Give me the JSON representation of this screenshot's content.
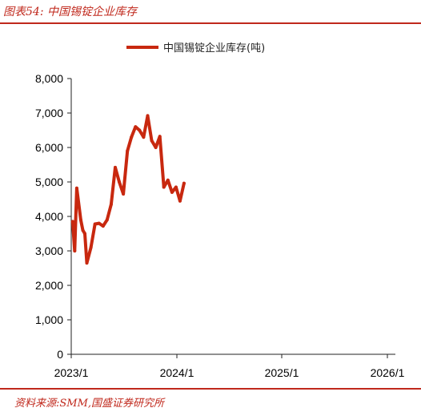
{
  "figure_title": "图表54:  中国锡锭企业库存",
  "source_note": "资料来源:SMM,国盛证券研究所",
  "colors": {
    "accent": "#c0281c",
    "series": "#c8280f",
    "axis": "#222222"
  },
  "chart_data": {
    "type": "line",
    "title": "",
    "xlabel": "",
    "ylabel": "",
    "ylim": [
      0,
      8000
    ],
    "yticks": [
      0,
      1000,
      2000,
      3000,
      4000,
      5000,
      6000,
      7000,
      8000
    ],
    "ytick_labels": [
      "0",
      "1,000",
      "2,000",
      "3,000",
      "4,000",
      "5,000",
      "6,000",
      "7,000",
      "8,000"
    ],
    "xticks": [
      "2023/1",
      "2024/1",
      "2025/1",
      "2026/1"
    ],
    "grid": false,
    "legend_position": "top-center",
    "series": [
      {
        "name": "中国锡锭企业库存(吨)",
        "color": "#c8280f",
        "x": [
          "2023-01-06",
          "2023-01-13",
          "2023-01-20",
          "2023-02-03",
          "2023-02-10",
          "2023-02-17",
          "2023-02-24",
          "2023-03-10",
          "2023-03-24",
          "2023-04-07",
          "2023-04-21",
          "2023-05-05",
          "2023-05-19",
          "2023-06-02",
          "2023-06-16",
          "2023-06-30",
          "2023-07-14",
          "2023-07-28",
          "2023-08-11",
          "2023-08-25",
          "2023-09-08",
          "2023-09-22",
          "2023-10-06",
          "2023-10-20",
          "2023-11-03",
          "2023-11-17",
          "2023-12-01",
          "2023-12-15",
          "2023-12-29",
          "2024-01-12",
          "2024-01-26"
        ],
        "values": [
          3850,
          3000,
          4820,
          3900,
          3600,
          3500,
          2650,
          3100,
          3780,
          3800,
          3720,
          3900,
          4350,
          5420,
          5000,
          4650,
          5900,
          6300,
          6600,
          6500,
          6300,
          6920,
          6200,
          6000,
          6320,
          4850,
          5050,
          4700,
          4850,
          4450,
          4960
        ]
      }
    ]
  }
}
